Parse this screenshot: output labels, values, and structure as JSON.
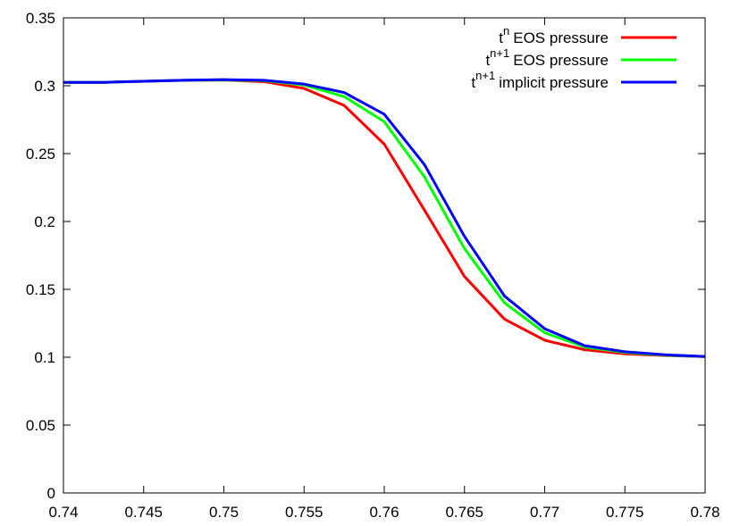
{
  "chart_data": {
    "type": "line",
    "xlim": [
      0.74,
      0.78
    ],
    "ylim": [
      0,
      0.35
    ],
    "x_ticks": [
      "0.74",
      "0.745",
      "0.75",
      "0.755",
      "0.76",
      "0.765",
      "0.77",
      "0.775",
      "0.78"
    ],
    "y_ticks": [
      "0",
      "0.05",
      "0.1",
      "0.15",
      "0.2",
      "0.25",
      "0.3",
      "0.35"
    ],
    "grid": false,
    "legend_position": "top-right",
    "x": [
      0.74,
      0.7425,
      0.745,
      0.7475,
      0.75,
      0.7525,
      0.755,
      0.7575,
      0.76,
      0.7625,
      0.765,
      0.7675,
      0.77,
      0.7725,
      0.775,
      0.7775,
      0.78
    ],
    "series": [
      {
        "name": "EOS pressure",
        "name_prefix": "t",
        "name_sup": "n",
        "color": "#ff0000",
        "values": [
          0.3025,
          0.3025,
          0.3033,
          0.304,
          0.3042,
          0.303,
          0.298,
          0.2855,
          0.257,
          0.2085,
          0.1595,
          0.128,
          0.1125,
          0.1055,
          0.1025,
          0.1012,
          0.1005
        ]
      },
      {
        "name": "EOS pressure",
        "name_prefix": "t",
        "name_sup": "n+1",
        "color": "#00ff00",
        "values": [
          0.3025,
          0.3025,
          0.3033,
          0.304,
          0.3042,
          0.3038,
          0.3005,
          0.292,
          0.2735,
          0.233,
          0.18,
          0.14,
          0.118,
          0.1075,
          0.1035,
          0.1015,
          0.1005
        ]
      },
      {
        "name": "implicit pressure",
        "name_prefix": "t",
        "name_sup": "n+1",
        "color": "#0000ff",
        "values": [
          0.3025,
          0.3025,
          0.3033,
          0.304,
          0.3045,
          0.304,
          0.3012,
          0.295,
          0.279,
          0.242,
          0.189,
          0.145,
          0.121,
          0.1085,
          0.104,
          0.1018,
          0.1005
        ]
      }
    ]
  }
}
